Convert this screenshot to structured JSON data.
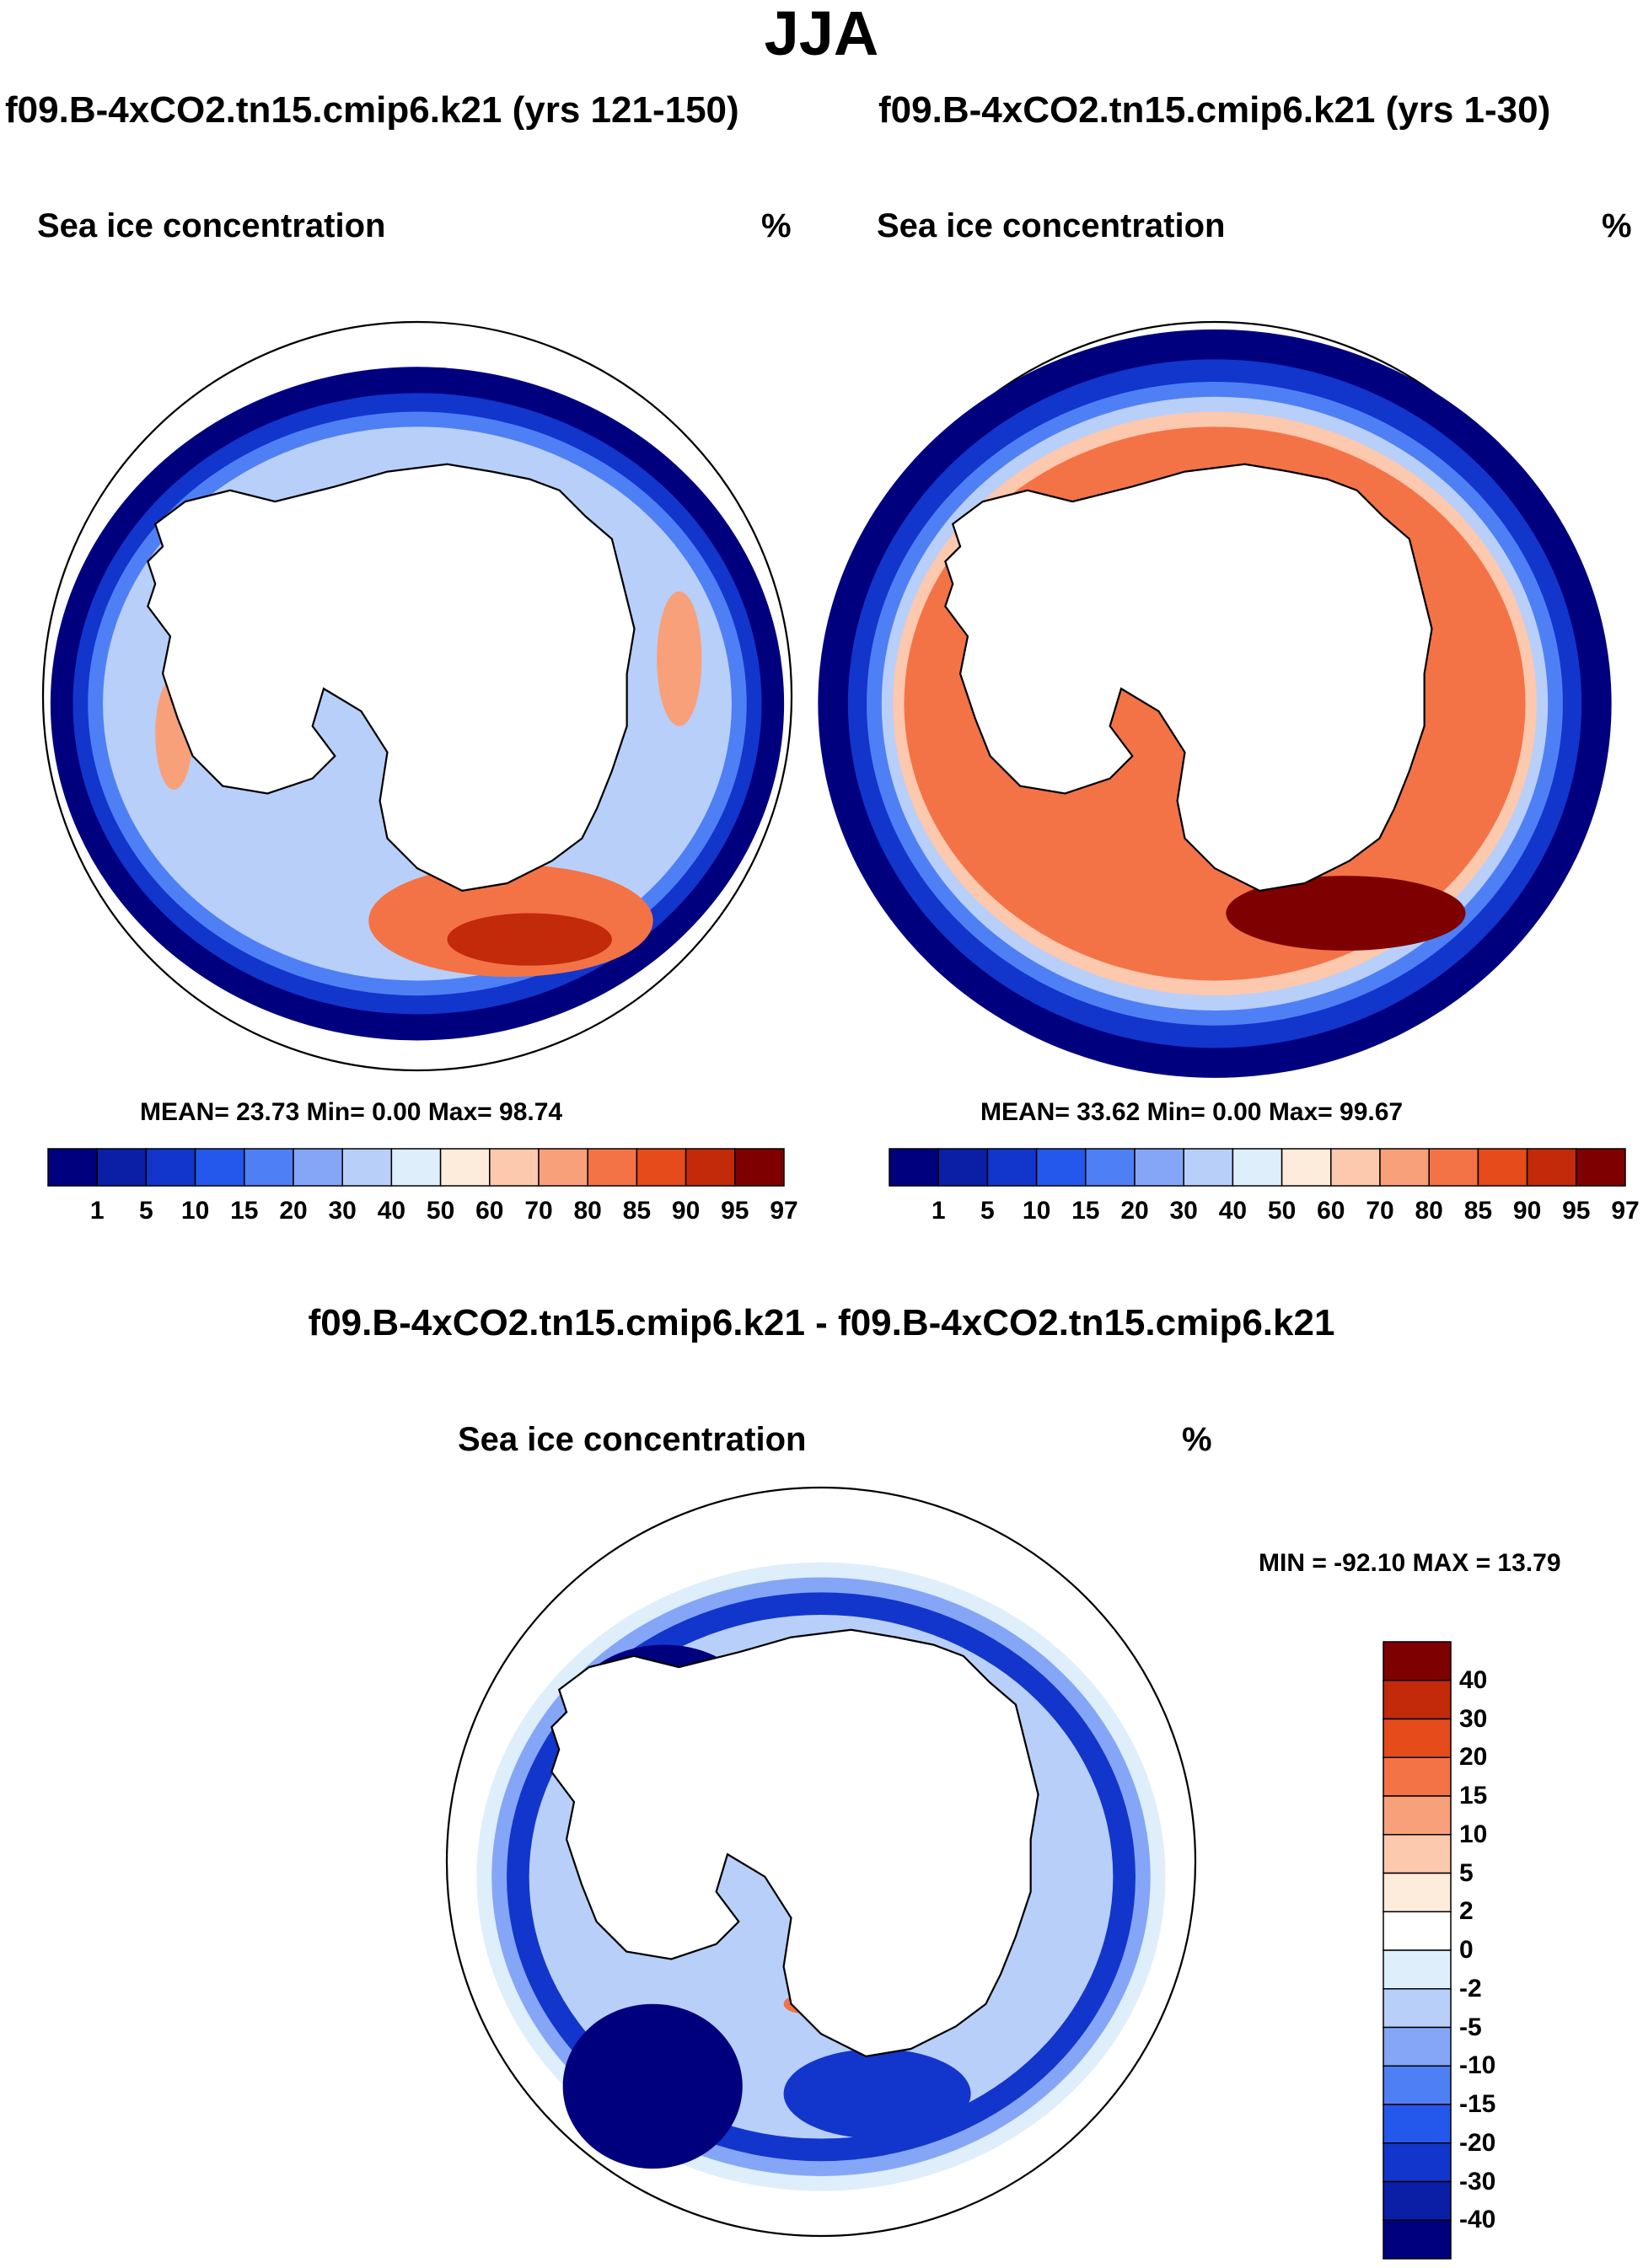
{
  "figure_title": "JJA",
  "panels": [
    {
      "case_title": "f09.B-4xCO2.tn15.cmip6.k21 (yrs 121-150)",
      "field_label": "Sea ice concentration",
      "units": "%",
      "stats": "MEAN=  23.73  Min=   0.00  Max=  98.74"
    },
    {
      "case_title": "f09.B-4xCO2.tn15.cmip6.k21 (yrs 1-30)",
      "field_label": "Sea ice concentration",
      "units": "%",
      "stats": "MEAN=  33.62  Min=   0.00  Max=  99.67"
    },
    {
      "case_title": "f09.B-4xCO2.tn15.cmip6.k21 - f09.B-4xCO2.tn15.cmip6.k21",
      "field_label": "Sea ice concentration",
      "units": "%",
      "stats": "MIN = -92.10 MAX =  13.79"
    }
  ],
  "chart_data": [
    {
      "type": "heatmap",
      "projection": "south-polar-stereographic",
      "title": "f09.B-4xCO2.tn15.cmip6.k21 (yrs 121-150)",
      "variable": "Sea ice concentration",
      "units": "%",
      "mean": 23.73,
      "min": 0.0,
      "max": 98.74,
      "legend_position": "bottom",
      "colorbar_levels": [
        "1",
        "5",
        "10",
        "15",
        "20",
        "30",
        "40",
        "50",
        "60",
        "70",
        "80",
        "85",
        "90",
        "95",
        "97"
      ],
      "colors": [
        "#00007f",
        "#0a1fa6",
        "#1236cc",
        "#2457eb",
        "#4f7ff5",
        "#85a6f7",
        "#b8cff9",
        "#deeefb",
        "#fdebdb",
        "#fcc8ae",
        "#f8a07a",
        "#f37346",
        "#e54b1b",
        "#c22a09",
        "#7f0000"
      ]
    },
    {
      "type": "heatmap",
      "projection": "south-polar-stereographic",
      "title": "f09.B-4xCO2.tn15.cmip6.k21 (yrs 1-30)",
      "variable": "Sea ice concentration",
      "units": "%",
      "mean": 33.62,
      "min": 0.0,
      "max": 99.67,
      "legend_position": "bottom",
      "colorbar_levels": [
        "1",
        "5",
        "10",
        "15",
        "20",
        "30",
        "40",
        "50",
        "60",
        "70",
        "80",
        "85",
        "90",
        "95",
        "97"
      ],
      "colors": [
        "#00007f",
        "#0a1fa6",
        "#1236cc",
        "#2457eb",
        "#4f7ff5",
        "#85a6f7",
        "#b8cff9",
        "#deeefb",
        "#fdebdb",
        "#fcc8ae",
        "#f8a07a",
        "#f37346",
        "#e54b1b",
        "#c22a09",
        "#7f0000"
      ]
    },
    {
      "type": "heatmap",
      "projection": "south-polar-stereographic",
      "title": "f09.B-4xCO2.tn15.cmip6.k21 - f09.B-4xCO2.tn15.cmip6.k21",
      "variable": "Sea ice concentration",
      "units": "%",
      "min": -92.1,
      "max": 13.79,
      "legend_position": "right",
      "colorbar_levels": [
        "40",
        "30",
        "20",
        "15",
        "10",
        "5",
        "2",
        "0",
        "-2",
        "-5",
        "-10",
        "-15",
        "-20",
        "-30",
        "-40"
      ],
      "colors": [
        "#7f0000",
        "#c22a09",
        "#e54b1b",
        "#f37346",
        "#f8a07a",
        "#fcc8ae",
        "#fdebdb",
        "#ffffff",
        "#deeefb",
        "#b8cff9",
        "#85a6f7",
        "#4f7ff5",
        "#2457eb",
        "#1236cc",
        "#0a1fa6",
        "#00007f"
      ]
    }
  ]
}
